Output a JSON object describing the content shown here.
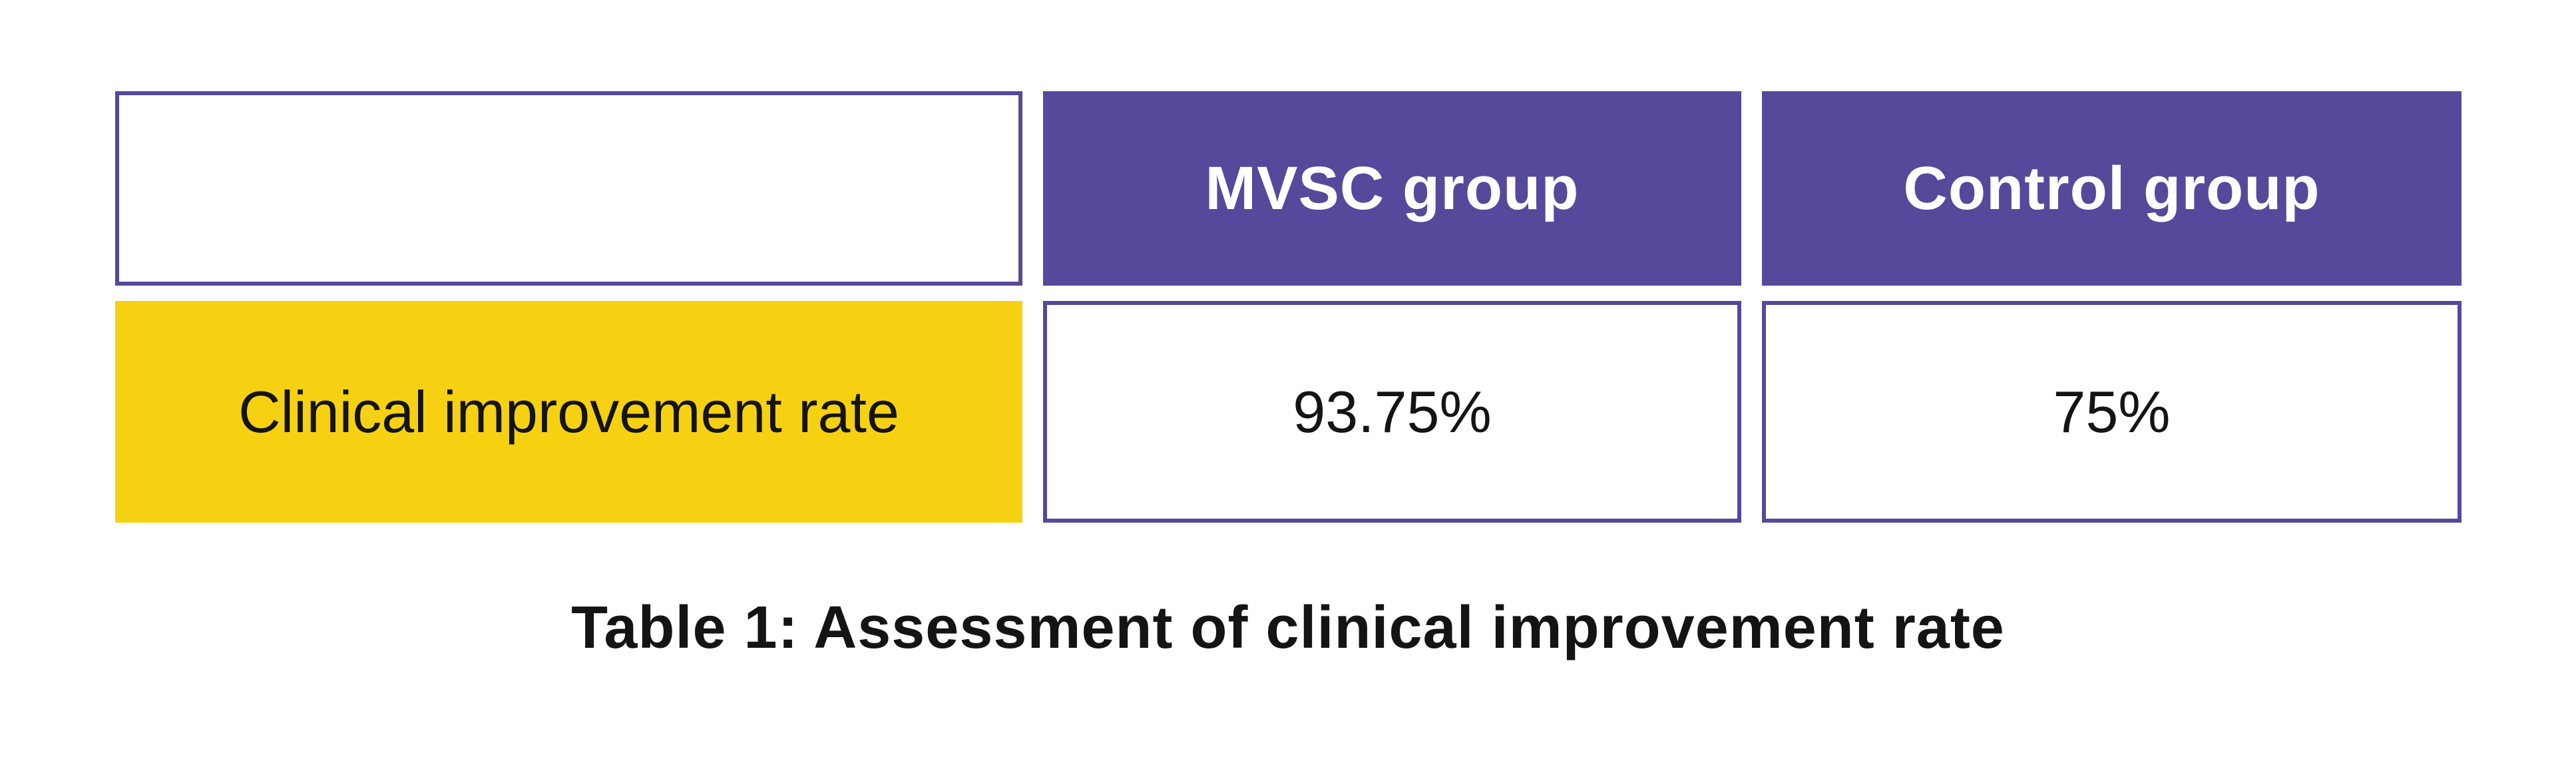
{
  "chart_data": {
    "type": "table",
    "columns": [
      "",
      "MVSC group",
      "Control group"
    ],
    "rows": [
      [
        "Clinical improvement rate",
        "93.75%",
        "75%"
      ]
    ],
    "values": {
      "MVSC group_clinical_improvement_rate_pct": 93.75,
      "Control group_clinical_improvement_rate_pct": 75
    },
    "title": "Table 1: Assessment of clinical improvement rate"
  },
  "colors": {
    "purple": "#55499B",
    "yellow": "#F5D112",
    "text_black": "#141414"
  }
}
